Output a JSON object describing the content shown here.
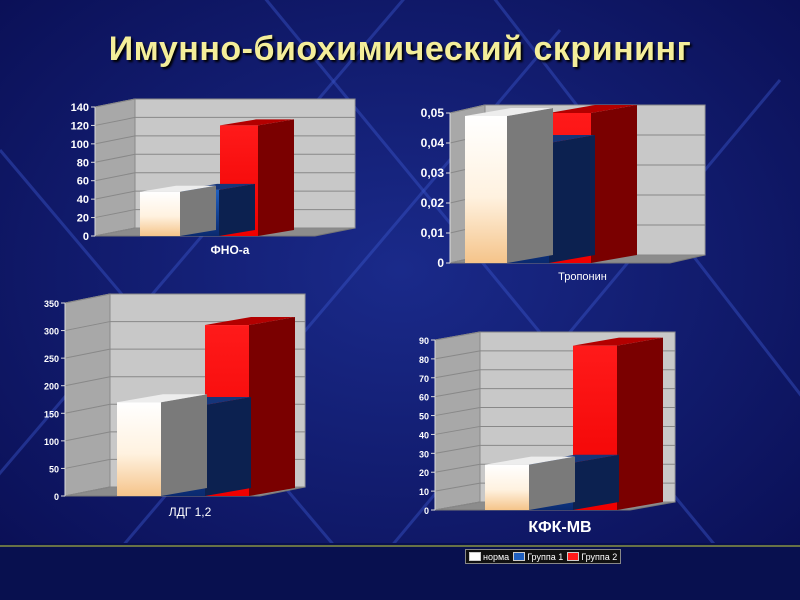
{
  "slide": {
    "title": "Имунно-биохимический скрининг"
  },
  "legend": [
    {
      "label": "норма",
      "color": "#ffffff"
    },
    {
      "label": "Группа 1",
      "color": "#1f5fbf"
    },
    {
      "label": "Группа 2",
      "color": "#ff1a1a"
    }
  ],
  "chart_data": [
    {
      "type": "bar",
      "xlabel": "ФНО-а",
      "ylim": [
        0,
        140
      ],
      "yticks": [
        "0",
        "20",
        "40",
        "60",
        "80",
        "100",
        "120",
        "140"
      ],
      "series": [
        {
          "name": "норма",
          "values": [
            48
          ]
        },
        {
          "name": "Группа 1",
          "values": [
            50
          ]
        },
        {
          "name": "Группа 2",
          "values": [
            120
          ]
        }
      ]
    },
    {
      "type": "bar",
      "xlabel": "Тропонин",
      "ylim": [
        0,
        0.05
      ],
      "yticks": [
        "0",
        "0,01",
        "0,02",
        "0,03",
        "0,04",
        "0,05"
      ],
      "series": [
        {
          "name": "норма",
          "values": [
            0.049
          ]
        },
        {
          "name": "Группа 1",
          "values": [
            0.04
          ]
        },
        {
          "name": "Группа 2",
          "values": [
            0.05
          ]
        }
      ]
    },
    {
      "type": "bar",
      "xlabel": "ЛДГ 1,2",
      "ylim": [
        0,
        350
      ],
      "yticks": [
        "0",
        "50",
        "100",
        "150",
        "200",
        "250",
        "300",
        "350"
      ],
      "series": [
        {
          "name": "норма",
          "values": [
            170
          ]
        },
        {
          "name": "Группа 1",
          "values": [
            165
          ]
        },
        {
          "name": "Группа 2",
          "values": [
            310
          ]
        }
      ]
    },
    {
      "type": "bar",
      "xlabel": "КФК-МВ",
      "ylim": [
        0,
        90
      ],
      "yticks": [
        "0",
        "10",
        "20",
        "30",
        "40",
        "50",
        "60",
        "70",
        "80",
        "90"
      ],
      "series": [
        {
          "name": "норма",
          "values": [
            24
          ]
        },
        {
          "name": "Группа 1",
          "values": [
            25
          ]
        },
        {
          "name": "Группа 2",
          "values": [
            87
          ]
        }
      ]
    }
  ]
}
